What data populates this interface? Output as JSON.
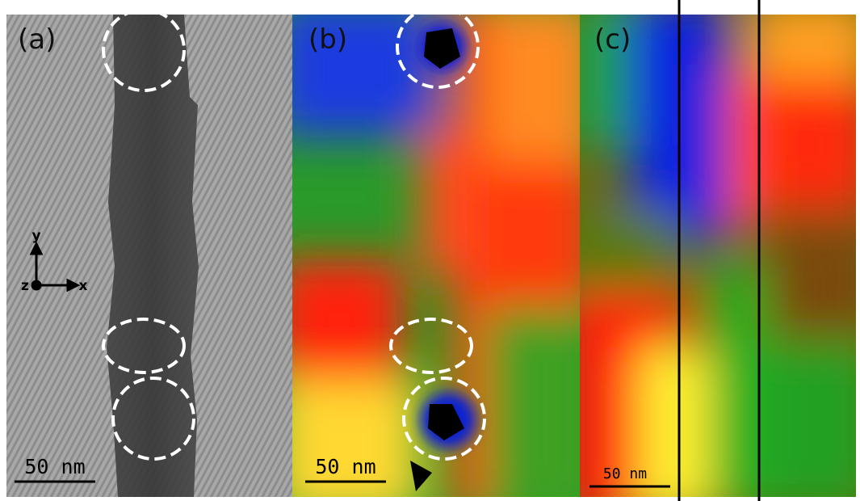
{
  "figure": {
    "panels": [
      {
        "label": "(a)",
        "scale_bar": "50 nm"
      },
      {
        "label": "(b)",
        "scale_bar": "50 nm"
      },
      {
        "label": "(c)",
        "scale_bar": "50 nm"
      }
    ],
    "axes": {
      "y": "y",
      "z": "z",
      "x": "x"
    }
  }
}
